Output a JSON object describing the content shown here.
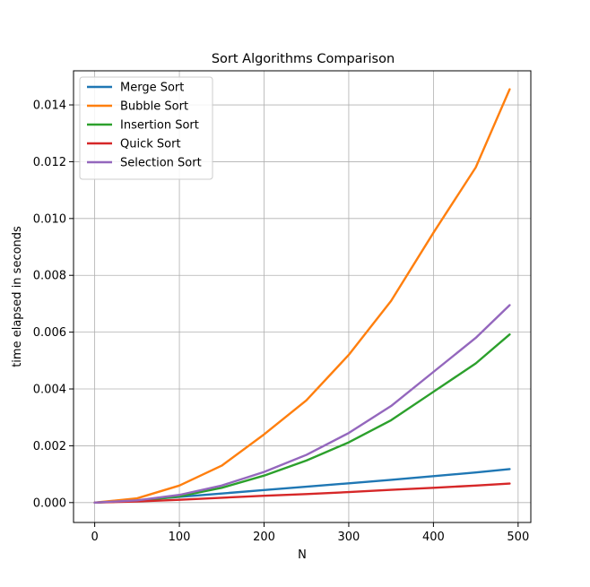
{
  "chart_data": {
    "type": "line",
    "title": "Sort Algorithms Comparison",
    "xlabel": "N",
    "ylabel": "time elapsed in seconds",
    "xlim": [
      -25,
      515
    ],
    "ylim": [
      -0.0007,
      0.0152
    ],
    "xticks": [
      0,
      100,
      200,
      300,
      400,
      500
    ],
    "yticks": [
      0.0,
      0.002,
      0.004,
      0.006,
      0.008,
      0.01,
      0.012,
      0.014
    ],
    "ytick_labels": [
      "0.000",
      "0.002",
      "0.004",
      "0.006",
      "0.008",
      "0.010",
      "0.012",
      "0.014"
    ],
    "grid": true,
    "legend_position": "top-left",
    "x": [
      0,
      50,
      100,
      150,
      200,
      250,
      300,
      350,
      400,
      450,
      490
    ],
    "series": [
      {
        "name": "Merge Sort",
        "color": "#1f77b4",
        "values": [
          0.0,
          8e-05,
          0.0002,
          0.00032,
          0.00044,
          0.00056,
          0.00068,
          0.0008,
          0.00093,
          0.00106,
          0.00118
        ]
      },
      {
        "name": "Bubble Sort",
        "color": "#ff7f0e",
        "values": [
          0.0,
          0.00015,
          0.0006,
          0.0013,
          0.0024,
          0.0036,
          0.0052,
          0.0071,
          0.0095,
          0.0118,
          0.01455
        ]
      },
      {
        "name": "Insertion Sort",
        "color": "#2ca02c",
        "values": [
          0.0,
          6e-05,
          0.00022,
          0.00052,
          0.00095,
          0.00148,
          0.00212,
          0.0029,
          0.0039,
          0.0049,
          0.00592
        ]
      },
      {
        "name": "Quick Sort",
        "color": "#d62728",
        "values": [
          0.0,
          4e-05,
          0.0001,
          0.00017,
          0.00024,
          0.0003,
          0.00037,
          0.00045,
          0.00052,
          0.0006,
          0.00067
        ]
      },
      {
        "name": "Selection Sort",
        "color": "#9467bd",
        "values": [
          0.0,
          8e-05,
          0.00027,
          0.0006,
          0.00108,
          0.00168,
          0.00245,
          0.0034,
          0.0046,
          0.0058,
          0.00695
        ]
      }
    ]
  }
}
